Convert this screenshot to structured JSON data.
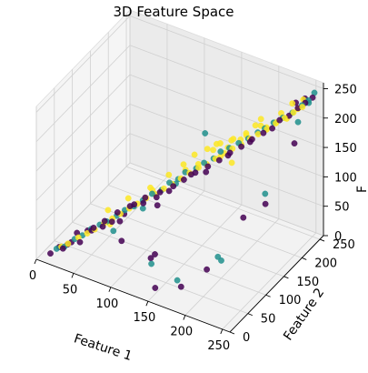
{
  "chart_data": {
    "type": "scatter3d",
    "title": "3D Feature Space",
    "xlabel": "Feature 1",
    "ylabel": "Feature 2",
    "zlabel": "F",
    "xlim": [
      0,
      260
    ],
    "ylim": [
      0,
      260
    ],
    "zlim": [
      0,
      260
    ],
    "x_ticks": [
      0,
      50,
      100,
      150,
      200,
      250
    ],
    "y_ticks": [
      0,
      50,
      100,
      150,
      200,
      250
    ],
    "z_ticks": [
      0,
      50,
      100,
      150,
      200,
      250
    ],
    "x_tick_labels": [
      "0",
      "50",
      "100",
      "150",
      "200",
      "250"
    ],
    "y_tick_labels": [
      "0",
      "50",
      "100",
      "150",
      "200",
      "250"
    ],
    "z_tick_labels": [
      "0",
      "50",
      "100",
      "150",
      "200",
      "250"
    ],
    "grid": true,
    "series": [
      {
        "color": "#440154",
        "points": [
          [
            15,
            8,
            12
          ],
          [
            22,
            18,
            20
          ],
          [
            30,
            12,
            25
          ],
          [
            35,
            25,
            30
          ],
          [
            40,
            30,
            45
          ],
          [
            48,
            22,
            38
          ],
          [
            55,
            40,
            50
          ],
          [
            60,
            35,
            60
          ],
          [
            65,
            50,
            55
          ],
          [
            70,
            45,
            70
          ],
          [
            75,
            55,
            65
          ],
          [
            80,
            60,
            80
          ],
          [
            88,
            50,
            75
          ],
          [
            92,
            70,
            90
          ],
          [
            100,
            65,
            100
          ],
          [
            105,
            80,
            95
          ],
          [
            110,
            75,
            110
          ],
          [
            118,
            90,
            105
          ],
          [
            125,
            85,
            120
          ],
          [
            130,
            100,
            115
          ],
          [
            138,
            95,
            130
          ],
          [
            145,
            110,
            135
          ],
          [
            150,
            120,
            140
          ],
          [
            158,
            115,
            150
          ],
          [
            165,
            130,
            145
          ],
          [
            170,
            125,
            160
          ],
          [
            178,
            140,
            165
          ],
          [
            185,
            150,
            170
          ],
          [
            190,
            145,
            180
          ],
          [
            198,
            160,
            185
          ],
          [
            205,
            170,
            190
          ],
          [
            210,
            165,
            200
          ],
          [
            218,
            180,
            205
          ],
          [
            225,
            190,
            210
          ],
          [
            230,
            200,
            220
          ],
          [
            238,
            210,
            225
          ],
          [
            245,
            220,
            235
          ],
          [
            250,
            230,
            240
          ],
          [
            255,
            240,
            245
          ],
          [
            240,
            250,
            230
          ],
          [
            200,
            60,
            40
          ],
          [
            180,
            30,
            20
          ],
          [
            150,
            20,
            10
          ],
          [
            120,
            70,
            15
          ],
          [
            90,
            150,
            40
          ],
          [
            60,
            120,
            30
          ],
          [
            220,
            120,
            100
          ],
          [
            240,
            140,
            120
          ],
          [
            100,
            30,
            60
          ],
          [
            140,
            40,
            50
          ],
          [
            250,
            200,
            190
          ],
          [
            235,
            235,
            230
          ],
          [
            40,
            60,
            30
          ],
          [
            25,
            35,
            15
          ]
        ]
      },
      {
        "color": "#21908d",
        "points": [
          [
            20,
            15,
            18
          ],
          [
            28,
            20,
            22
          ],
          [
            38,
            28,
            35
          ],
          [
            45,
            35,
            40
          ],
          [
            52,
            45,
            48
          ],
          [
            62,
            48,
            58
          ],
          [
            68,
            55,
            62
          ],
          [
            78,
            62,
            72
          ],
          [
            85,
            70,
            80
          ],
          [
            95,
            75,
            88
          ],
          [
            102,
            85,
            95
          ],
          [
            112,
            90,
            108
          ],
          [
            120,
            100,
            112
          ],
          [
            128,
            105,
            125
          ],
          [
            135,
            115,
            128
          ],
          [
            142,
            120,
            140
          ],
          [
            152,
            130,
            145
          ],
          [
            160,
            135,
            155
          ],
          [
            168,
            145,
            160
          ],
          [
            175,
            150,
            172
          ],
          [
            182,
            160,
            175
          ],
          [
            192,
            165,
            185
          ],
          [
            200,
            175,
            190
          ],
          [
            208,
            185,
            198
          ],
          [
            215,
            190,
            205
          ],
          [
            222,
            200,
            212
          ],
          [
            232,
            205,
            222
          ],
          [
            240,
            215,
            228
          ],
          [
            248,
            225,
            238
          ],
          [
            252,
            235,
            242
          ],
          [
            255,
            245,
            250
          ],
          [
            140,
            30,
            40
          ],
          [
            200,
            100,
            30
          ],
          [
            230,
            160,
            120
          ],
          [
            170,
            40,
            20
          ],
          [
            90,
            110,
            60
          ],
          [
            110,
            160,
            80
          ],
          [
            60,
            90,
            20
          ],
          [
            210,
            70,
            60
          ],
          [
            250,
            210,
            220
          ],
          [
            245,
            250,
            225
          ],
          [
            130,
            200,
            150
          ]
        ]
      },
      {
        "color": "#fde725",
        "points": [
          [
            25,
            18,
            22
          ],
          [
            32,
            22,
            28
          ],
          [
            42,
            30,
            38
          ],
          [
            50,
            38,
            44
          ],
          [
            58,
            42,
            52
          ],
          [
            66,
            52,
            60
          ],
          [
            74,
            58,
            68
          ],
          [
            82,
            64,
            76
          ],
          [
            90,
            72,
            84
          ],
          [
            98,
            78,
            92
          ],
          [
            106,
            86,
            100
          ],
          [
            114,
            94,
            106
          ],
          [
            122,
            102,
            114
          ],
          [
            130,
            108,
            122
          ],
          [
            138,
            116,
            130
          ],
          [
            146,
            124,
            138
          ],
          [
            154,
            132,
            146
          ],
          [
            162,
            138,
            152
          ],
          [
            170,
            146,
            160
          ],
          [
            178,
            154,
            168
          ],
          [
            186,
            160,
            176
          ],
          [
            194,
            168,
            182
          ],
          [
            202,
            176,
            190
          ],
          [
            210,
            182,
            198
          ],
          [
            218,
            190,
            206
          ],
          [
            226,
            198,
            214
          ],
          [
            234,
            206,
            222
          ],
          [
            242,
            214,
            230
          ],
          [
            250,
            222,
            238
          ],
          [
            140,
            150,
            150
          ],
          [
            160,
            170,
            165
          ],
          [
            180,
            175,
            180
          ],
          [
            190,
            190,
            185
          ],
          [
            200,
            195,
            200
          ],
          [
            210,
            205,
            195
          ],
          [
            220,
            210,
            205
          ],
          [
            170,
            160,
            155
          ],
          [
            150,
            140,
            145
          ],
          [
            195,
            180,
            190
          ],
          [
            230,
            220,
            210
          ],
          [
            240,
            230,
            225
          ],
          [
            205,
            200,
            210
          ],
          [
            215,
            195,
            200
          ],
          [
            165,
            150,
            170
          ],
          [
            185,
            185,
            175
          ],
          [
            130,
            140,
            135
          ],
          [
            175,
            180,
            172
          ],
          [
            225,
            215,
            220
          ],
          [
            120,
            120,
            125
          ],
          [
            100,
            110,
            100
          ],
          [
            80,
            90,
            85
          ],
          [
            70,
            60,
            55
          ],
          [
            60,
            75,
            65
          ],
          [
            190,
            150,
            160
          ],
          [
            200,
            210,
            190
          ],
          [
            160,
            180,
            160
          ],
          [
            180,
            160,
            175
          ],
          [
            150,
            165,
            155
          ],
          [
            140,
            125,
            140
          ],
          [
            235,
            225,
            235
          ],
          [
            245,
            235,
            240
          ],
          [
            110,
            95,
            110
          ]
        ]
      }
    ]
  }
}
